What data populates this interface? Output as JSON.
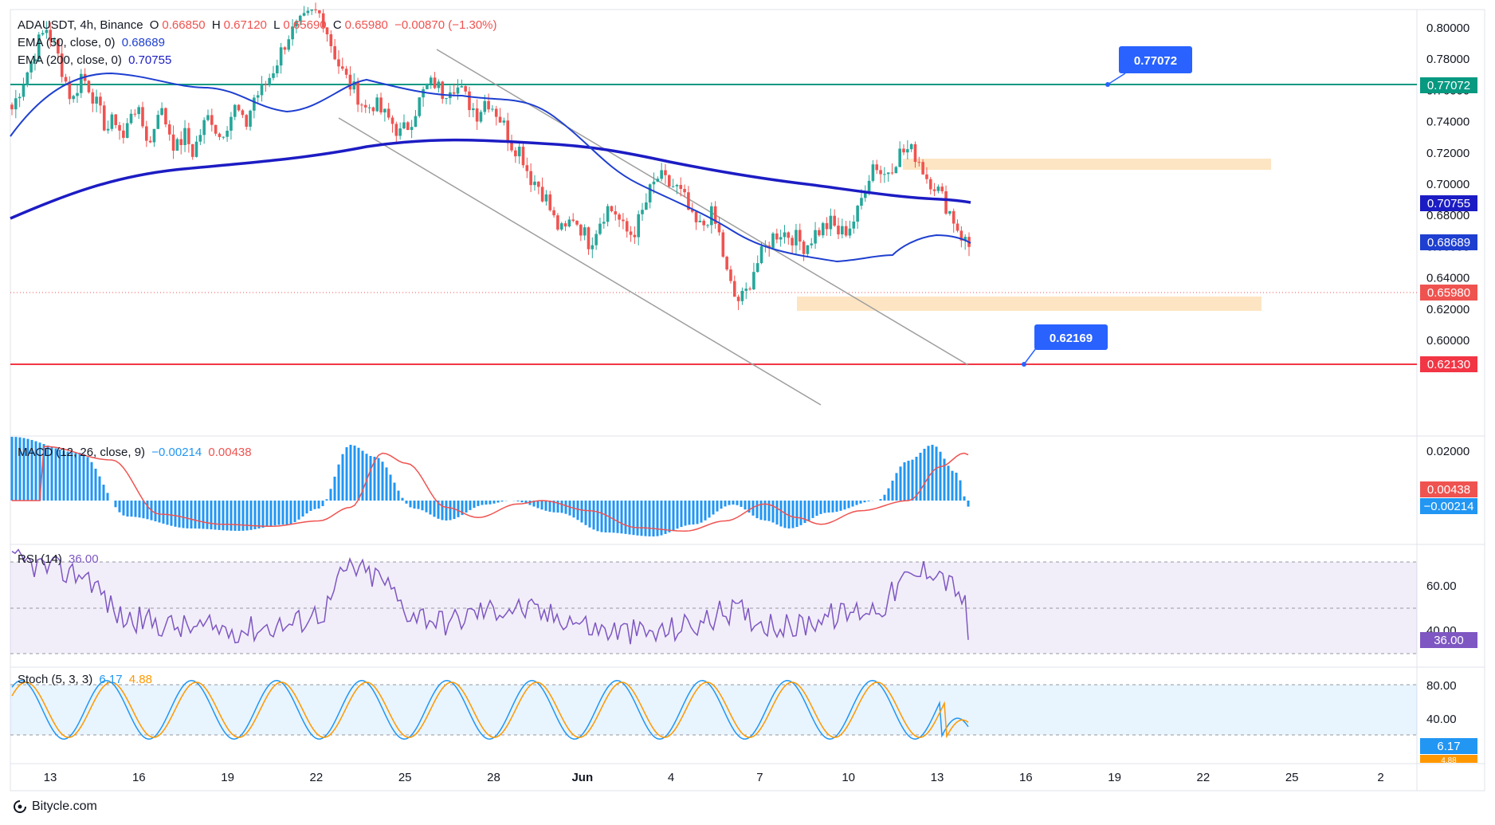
{
  "header": {
    "symbol": "ADAUSDT, 4h, Binance",
    "open_label": "O",
    "open": "0.66850",
    "high_label": "H",
    "high": "0.67120",
    "low_label": "L",
    "low": "0.65690",
    "close_label": "C",
    "close": "0.65980",
    "change": "−0.00870 (−1.30%)",
    "ema50_label": "EMA (50, close, 0)",
    "ema50_value": "0.68689",
    "ema200_label": "EMA (200, close, 0)",
    "ema200_value": "0.70755"
  },
  "colors": {
    "up": "#26a69a",
    "down": "#ef5350",
    "ema50": "#1e3fd0",
    "ema200": "#1c1cc4",
    "resistance": "#089981",
    "support": "#f23645",
    "zone": "#fde0b8",
    "channel": "#9e9e9e",
    "macd_hist": "#2196f3",
    "macd_signal": "#ef5350",
    "rsi": "#7e57c2",
    "stoch_k": "#2196f3",
    "stoch_d": "#ff9800",
    "callout": "#2962ff"
  },
  "chart_data": [
    {
      "type": "candlestick",
      "title": "ADAUSDT, 4h, Binance",
      "ylim": [
        0.59,
        0.81
      ],
      "y_ticks": [
        "0.80000",
        "0.78000",
        "0.76000",
        "0.74000",
        "0.72000",
        "0.70000",
        "0.68000",
        "0.66000",
        "0.64000",
        "0.62000",
        "0.60000"
      ],
      "x_ticks": [
        "13",
        "16",
        "19",
        "22",
        "25",
        "28",
        "Jun",
        "4",
        "7",
        "10",
        "13",
        "16",
        "19",
        "22",
        "25",
        "2"
      ],
      "price_path": [
        0.748,
        0.762,
        0.775,
        0.79,
        0.8,
        0.788,
        0.77,
        0.752,
        0.77,
        0.762,
        0.748,
        0.735,
        0.742,
        0.728,
        0.752,
        0.74,
        0.725,
        0.75,
        0.738,
        0.722,
        0.732,
        0.72,
        0.735,
        0.745,
        0.73,
        0.74,
        0.75,
        0.735,
        0.755,
        0.76,
        0.77,
        0.782,
        0.795,
        0.8,
        0.805,
        0.81,
        0.808,
        0.79,
        0.775,
        0.765,
        0.758,
        0.748,
        0.752,
        0.745,
        0.74,
        0.732,
        0.738,
        0.75,
        0.762,
        0.765,
        0.758,
        0.765,
        0.76,
        0.752,
        0.745,
        0.755,
        0.748,
        0.738,
        0.725,
        0.722,
        0.705,
        0.7,
        0.69,
        0.675,
        0.668,
        0.68,
        0.672,
        0.662,
        0.675,
        0.685,
        0.682,
        0.67,
        0.668,
        0.68,
        0.695,
        0.705,
        0.7,
        0.698,
        0.69,
        0.675,
        0.672,
        0.682,
        0.668,
        0.64,
        0.625,
        0.628,
        0.645,
        0.655,
        0.665,
        0.67,
        0.668,
        0.665,
        0.66,
        0.668,
        0.672,
        0.675,
        0.668,
        0.672,
        0.68,
        0.7,
        0.715,
        0.705,
        0.712,
        0.72,
        0.722,
        0.718,
        0.705,
        0.7,
        0.69,
        0.68,
        0.668,
        0.6598
      ],
      "ema50_value": 0.68689,
      "ema200_value": 0.70755,
      "last_price": 0.6598,
      "levels": [
        {
          "name": "resistance",
          "value": 0.77072,
          "label": "0.77072"
        },
        {
          "name": "support",
          "value": 0.6213,
          "label": "0.62130"
        }
      ],
      "callouts": [
        {
          "label": "0.77072",
          "value": 0.77072
        },
        {
          "label": "0.62169",
          "value": 0.62169
        }
      ],
      "zones": [
        {
          "name": "supply-zone",
          "from": 0.7275,
          "to": 0.731
        },
        {
          "name": "demand-zone",
          "from": 0.6505,
          "to": 0.658
        }
      ],
      "price_labels": [
        {
          "name": "resistance-price-label",
          "text": "0.77072"
        },
        {
          "name": "ema200-price-label",
          "text": "0.70755"
        },
        {
          "name": "ema50-price-label",
          "text": "0.68689"
        },
        {
          "name": "last-price-label",
          "text": "0.65980"
        },
        {
          "name": "support-price-label",
          "text": "0.62130"
        }
      ]
    },
    {
      "type": "bar",
      "title": "MACD (12, 26, close, 9)",
      "macd_value": "−0.00214",
      "signal_value": "0.00438",
      "y_ticks": [
        "0.02000"
      ],
      "labels": [
        "0.00438",
        "−0.00214"
      ]
    },
    {
      "type": "line",
      "title": "RSI (14)",
      "value": "36.00",
      "y_ticks": [
        "60.00",
        "40.00"
      ],
      "bands": [
        70,
        50,
        30
      ],
      "label": "36.00"
    },
    {
      "type": "line",
      "title": "Stoch (5, 3, 3)",
      "k_value": "6.17",
      "d_value": "4.88",
      "y_ticks": [
        "80.00",
        "40.00"
      ],
      "bands": [
        80,
        20
      ],
      "labels": [
        "6.17",
        "4.88"
      ]
    }
  ],
  "brand": {
    "text": "Bitycle.com"
  }
}
